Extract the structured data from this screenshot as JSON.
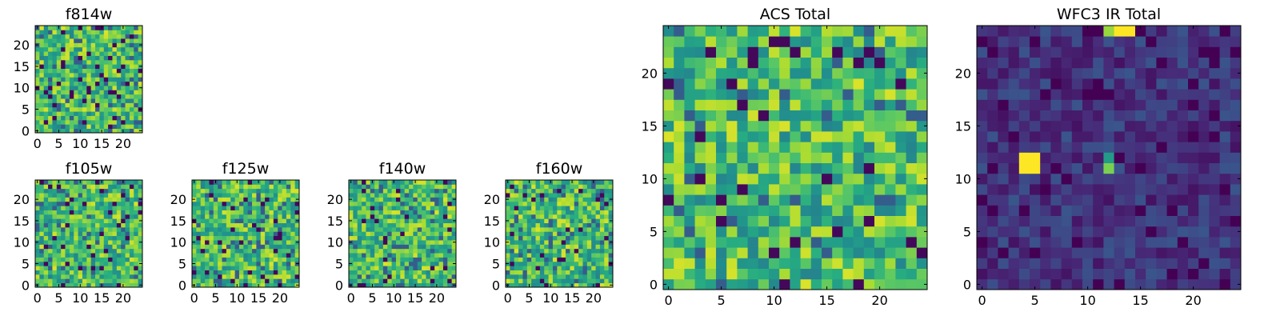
{
  "chart_data": {
    "type": "heatmap",
    "colormap": "viridis",
    "grid": false,
    "legend": "none",
    "panels": [
      {
        "id": "f814w",
        "title": "f814w",
        "xlim": [
          -0.5,
          24.5
        ],
        "ylim": [
          -0.5,
          24.5
        ],
        "x_ticks": [
          0,
          5,
          10,
          15,
          20
        ],
        "y_ticks": [
          0,
          5,
          10,
          15,
          20
        ],
        "x_tick_labels": [
          "0",
          "5",
          "10",
          "15",
          "20"
        ],
        "y_tick_labels": [
          "0",
          "5",
          "10",
          "15",
          "20"
        ],
        "values": []
      },
      {
        "id": "f105w",
        "title": "f105w",
        "xlim": [
          -0.5,
          24.5
        ],
        "ylim": [
          -0.5,
          24.5
        ],
        "x_ticks": [
          0,
          5,
          10,
          15,
          20
        ],
        "y_ticks": [
          0,
          5,
          10,
          15,
          20
        ],
        "x_tick_labels": [
          "0",
          "5",
          "10",
          "15",
          "20"
        ],
        "y_tick_labels": [
          "0",
          "5",
          "10",
          "15",
          "20"
        ],
        "values": []
      },
      {
        "id": "f125w",
        "title": "f125w",
        "xlim": [
          -0.5,
          24.5
        ],
        "ylim": [
          -0.5,
          24.5
        ],
        "x_ticks": [
          0,
          5,
          10,
          15,
          20
        ],
        "y_ticks": [
          0,
          5,
          10,
          15,
          20
        ],
        "x_tick_labels": [
          "0",
          "5",
          "10",
          "15",
          "20"
        ],
        "y_tick_labels": [
          "0",
          "5",
          "10",
          "15",
          "20"
        ],
        "values": []
      },
      {
        "id": "f140w",
        "title": "f140w",
        "xlim": [
          -0.5,
          24.5
        ],
        "ylim": [
          -0.5,
          24.5
        ],
        "x_ticks": [
          0,
          5,
          10,
          15,
          20
        ],
        "y_ticks": [
          0,
          5,
          10,
          15,
          20
        ],
        "x_tick_labels": [
          "0",
          "5",
          "10",
          "15",
          "20"
        ],
        "y_tick_labels": [
          "0",
          "5",
          "10",
          "15",
          "20"
        ],
        "values": []
      },
      {
        "id": "f160w",
        "title": "f160w",
        "xlim": [
          -0.5,
          24.5
        ],
        "ylim": [
          -0.5,
          24.5
        ],
        "x_ticks": [
          0,
          5,
          10,
          15,
          20
        ],
        "y_ticks": [
          0,
          5,
          10,
          15,
          20
        ],
        "x_tick_labels": [
          "0",
          "5",
          "10",
          "15",
          "20"
        ],
        "y_tick_labels": [
          "0",
          "5",
          "10",
          "15",
          "20"
        ],
        "values": []
      },
      {
        "id": "acs-total",
        "title": "ACS Total",
        "xlim": [
          -0.5,
          24.5
        ],
        "ylim": [
          -0.5,
          24.5
        ],
        "x_ticks": [
          0,
          5,
          10,
          15,
          20
        ],
        "y_ticks": [
          0,
          5,
          10,
          15,
          20
        ],
        "x_tick_labels": [
          "0",
          "5",
          "10",
          "15",
          "20"
        ],
        "y_tick_labels": [
          "0",
          "5",
          "10",
          "15",
          "20"
        ],
        "values": []
      },
      {
        "id": "wfc3-ir-total",
        "title": "WFC3 IR Total",
        "xlim": [
          -0.5,
          24.5
        ],
        "ylim": [
          -0.5,
          24.5
        ],
        "x_ticks": [
          0,
          5,
          10,
          15,
          20
        ],
        "y_ticks": [
          0,
          5,
          10,
          15,
          20
        ],
        "x_tick_labels": [
          "0",
          "5",
          "10",
          "15",
          "20"
        ],
        "y_tick_labels": [
          "0",
          "5",
          "10",
          "15",
          "20"
        ],
        "values": [],
        "hot_pixels": [
          [
            4,
            11,
            1.0
          ],
          [
            5,
            11,
            1.0
          ],
          [
            4,
            12,
            1.0
          ],
          [
            5,
            12,
            1.0
          ],
          [
            12,
            11,
            0.8
          ],
          [
            12,
            12,
            0.55
          ],
          [
            13,
            24,
            1.0
          ],
          [
            14,
            24,
            1.0
          ],
          [
            12,
            24,
            0.85
          ]
        ]
      }
    ]
  }
}
